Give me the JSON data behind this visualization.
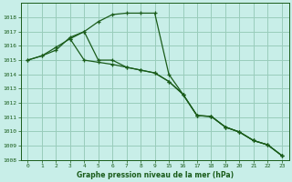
{
  "background_color": "#c8eee8",
  "grid_color": "#99ccbb",
  "line_color": "#1a5c1a",
  "xlabel": "Graphe pression niveau de la mer (hPa)",
  "ylim": [
    1008,
    1019
  ],
  "yticks": [
    1008,
    1009,
    1010,
    1011,
    1012,
    1013,
    1014,
    1015,
    1016,
    1017,
    1018
  ],
  "xtick_labels": [
    "0",
    "1",
    "2",
    "3",
    "4",
    "5",
    "6",
    "7",
    "8",
    "9",
    "15",
    "16",
    "17",
    "18",
    "19",
    "20",
    "21",
    "22",
    "23"
  ],
  "xtick_positions": [
    0,
    1,
    2,
    3,
    4,
    5,
    6,
    7,
    8,
    9,
    10,
    11,
    12,
    13,
    14,
    15,
    16,
    17,
    18
  ],
  "line1_x_idx": [
    0,
    1,
    2,
    3,
    4,
    5,
    6,
    7,
    8,
    9,
    10,
    11,
    12,
    13,
    14,
    15,
    16,
    17,
    18
  ],
  "line1_y": [
    1015.0,
    1015.3,
    1015.9,
    1016.5,
    1015.0,
    1014.85,
    1014.7,
    1014.5,
    1014.3,
    1014.1,
    1013.5,
    1012.6,
    1011.1,
    1011.05,
    1010.3,
    1009.95,
    1009.35,
    1009.05,
    1008.3
  ],
  "line2_x_idx": [
    0,
    1,
    2,
    3,
    4,
    5,
    6,
    7,
    8,
    9,
    10,
    11,
    12,
    13,
    14,
    15,
    16,
    17,
    18
  ],
  "line2_y": [
    1015.0,
    1015.3,
    1015.7,
    1016.6,
    1017.0,
    1017.7,
    1018.2,
    1018.3,
    1018.3,
    1018.3,
    1014.0,
    1012.6,
    1011.1,
    1011.05,
    1010.3,
    1009.95,
    1009.35,
    1009.05,
    1008.3
  ],
  "line3_x_idx": [
    3,
    4,
    5,
    6,
    7,
    8,
    9,
    10,
    11,
    12,
    13,
    14,
    15,
    16,
    17,
    18
  ],
  "line3_y": [
    1016.5,
    1017.0,
    1015.0,
    1015.0,
    1014.5,
    1014.3,
    1014.1,
    1013.5,
    1012.6,
    1011.1,
    1011.05,
    1010.3,
    1009.95,
    1009.35,
    1009.05,
    1008.3
  ],
  "marker_size": 3.5,
  "line_width": 0.9
}
